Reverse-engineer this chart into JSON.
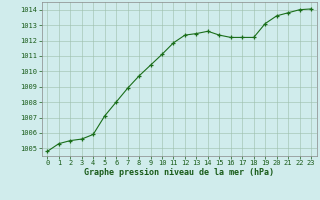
{
  "x": [
    0,
    1,
    2,
    3,
    4,
    5,
    6,
    7,
    8,
    9,
    10,
    11,
    12,
    13,
    14,
    15,
    16,
    17,
    18,
    19,
    20,
    21,
    22,
    23
  ],
  "y": [
    1004.8,
    1005.3,
    1005.5,
    1005.6,
    1005.9,
    1007.1,
    1008.0,
    1008.9,
    1009.7,
    1010.4,
    1011.1,
    1011.85,
    1012.35,
    1012.45,
    1012.6,
    1012.35,
    1012.2,
    1012.2,
    1012.2,
    1013.1,
    1013.6,
    1013.8,
    1014.0,
    1014.05
  ],
  "line_color": "#1a6e1a",
  "marker": "+",
  "bg_color": "#d0ecec",
  "grid_color": "#9dbfab",
  "xlabel": "Graphe pression niveau de la mer (hPa)",
  "xlabel_color": "#1a5c1a",
  "tick_color": "#1a5c1a",
  "xlim": [
    -0.5,
    23.5
  ],
  "ylim": [
    1004.5,
    1014.5
  ],
  "yticks": [
    1005,
    1006,
    1007,
    1008,
    1009,
    1010,
    1011,
    1012,
    1013,
    1014
  ],
  "xticks": [
    0,
    1,
    2,
    3,
    4,
    5,
    6,
    7,
    8,
    9,
    10,
    11,
    12,
    13,
    14,
    15,
    16,
    17,
    18,
    19,
    20,
    21,
    22,
    23
  ],
  "spine_color": "#888888"
}
